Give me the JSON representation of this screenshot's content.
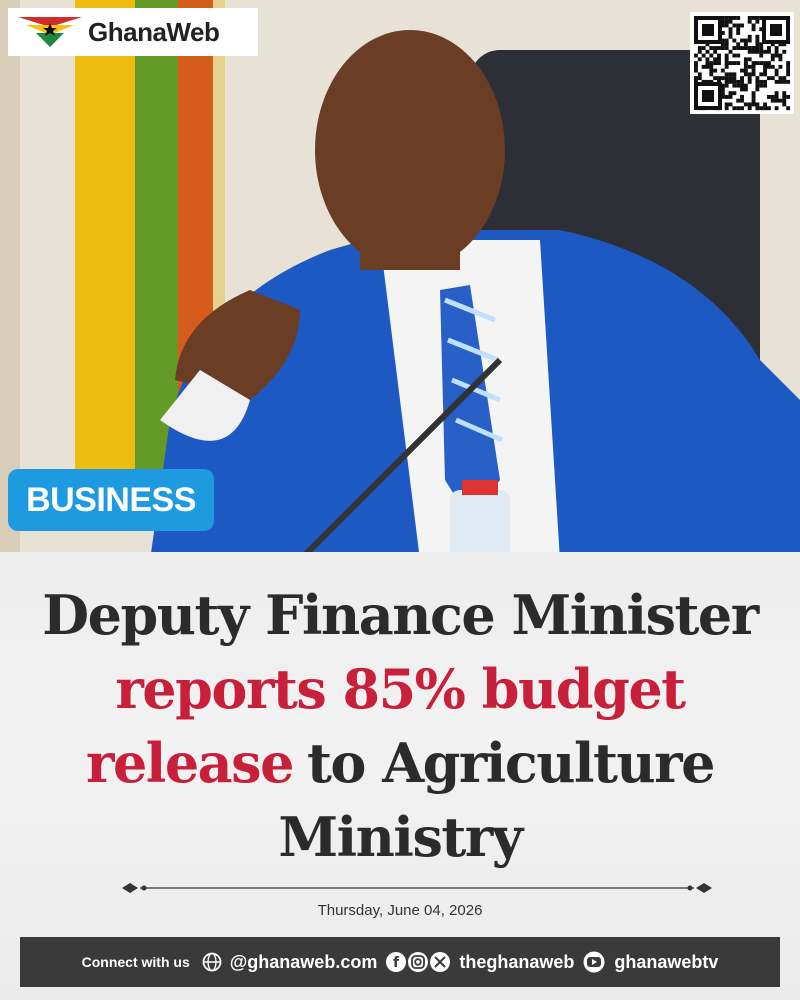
{
  "logo": "GhanaWeb",
  "category": "BUSINESS",
  "headline": {
    "lines": [
      [
        {
          "text": "Deputy Finance Minister",
          "emphasis": false
        }
      ],
      [
        {
          "text": "reports 85% budget",
          "emphasis": true
        }
      ],
      [
        {
          "text": "release",
          "emphasis": true
        },
        {
          "text": "to Agriculture",
          "emphasis": false
        }
      ],
      [
        {
          "text": "Ministry",
          "emphasis": false
        }
      ]
    ]
  },
  "date": "Thursday, June 04, 2026",
  "footer": {
    "label": "Connect with us",
    "website": "@ghanaweb.com",
    "social": "theghanaweb",
    "youtube": "ghanawebtv"
  }
}
